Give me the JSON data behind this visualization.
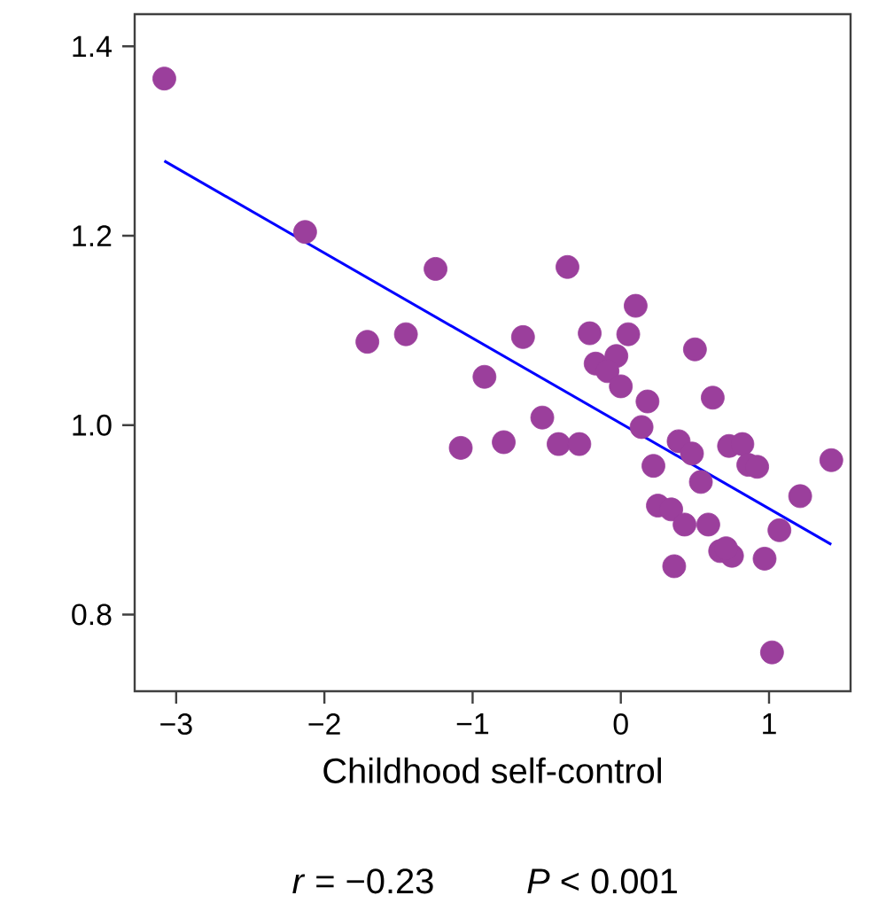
{
  "chart_data": {
    "type": "scatter",
    "xlabel": "Childhood self-control",
    "annotations": [
      "*r* = −0.23",
      "*P* < 0.001"
    ],
    "xlim": [
      -3.28,
      1.55
    ],
    "ylim": [
      0.719,
      1.434
    ],
    "xticks": [
      {
        "value": -3,
        "label": "−3"
      },
      {
        "value": -2,
        "label": "−2"
      },
      {
        "value": -1,
        "label": "−1"
      },
      0,
      1
    ],
    "yticks": [
      {
        "value": 0.8,
        "label": "0.8"
      },
      {
        "value": 1.0,
        "label": "1.0"
      },
      {
        "value": 1.2,
        "label": "1.2"
      },
      {
        "value": 1.4,
        "label": "1.4"
      }
    ],
    "series": [
      {
        "marker": "circle",
        "color": "#9b3f9c",
        "x": [
          -3.08,
          -2.13,
          -1.25,
          -1.71,
          -1.45,
          -0.92,
          -1.08,
          -0.79,
          -0.36,
          0.1,
          -0.66,
          -0.21,
          0.05,
          0.5,
          -0.17,
          -0.03,
          -0.09,
          0.0,
          0.18,
          0.62,
          -0.53,
          -0.42,
          -0.28,
          0.14,
          0.39,
          0.48,
          0.73,
          0.82,
          0.86,
          0.92,
          0.22,
          1.42,
          0.54,
          1.21,
          0.25,
          0.34,
          0.43,
          0.59,
          1.07,
          0.67,
          0.75,
          0.71,
          0.97,
          0.36,
          1.02
        ],
        "values": [
          1.366,
          1.204,
          1.165,
          1.088,
          1.096,
          1.051,
          0.976,
          0.982,
          1.167,
          1.126,
          1.093,
          1.097,
          1.096,
          1.08,
          1.065,
          1.073,
          1.057,
          1.041,
          1.025,
          1.029,
          1.008,
          0.98,
          0.98,
          0.998,
          0.983,
          0.97,
          0.978,
          0.98,
          0.958,
          0.956,
          0.957,
          0.963,
          0.94,
          0.925,
          0.915,
          0.911,
          0.895,
          0.895,
          0.889,
          0.867,
          0.862,
          0.87,
          0.859,
          0.851,
          0.76
        ]
      },
      {
        "type": "line",
        "line_style": "solid",
        "color": "#0000ff",
        "x": [
          -3.08,
          1.42
        ],
        "values": [
          1.279,
          0.874
        ]
      }
    ]
  }
}
